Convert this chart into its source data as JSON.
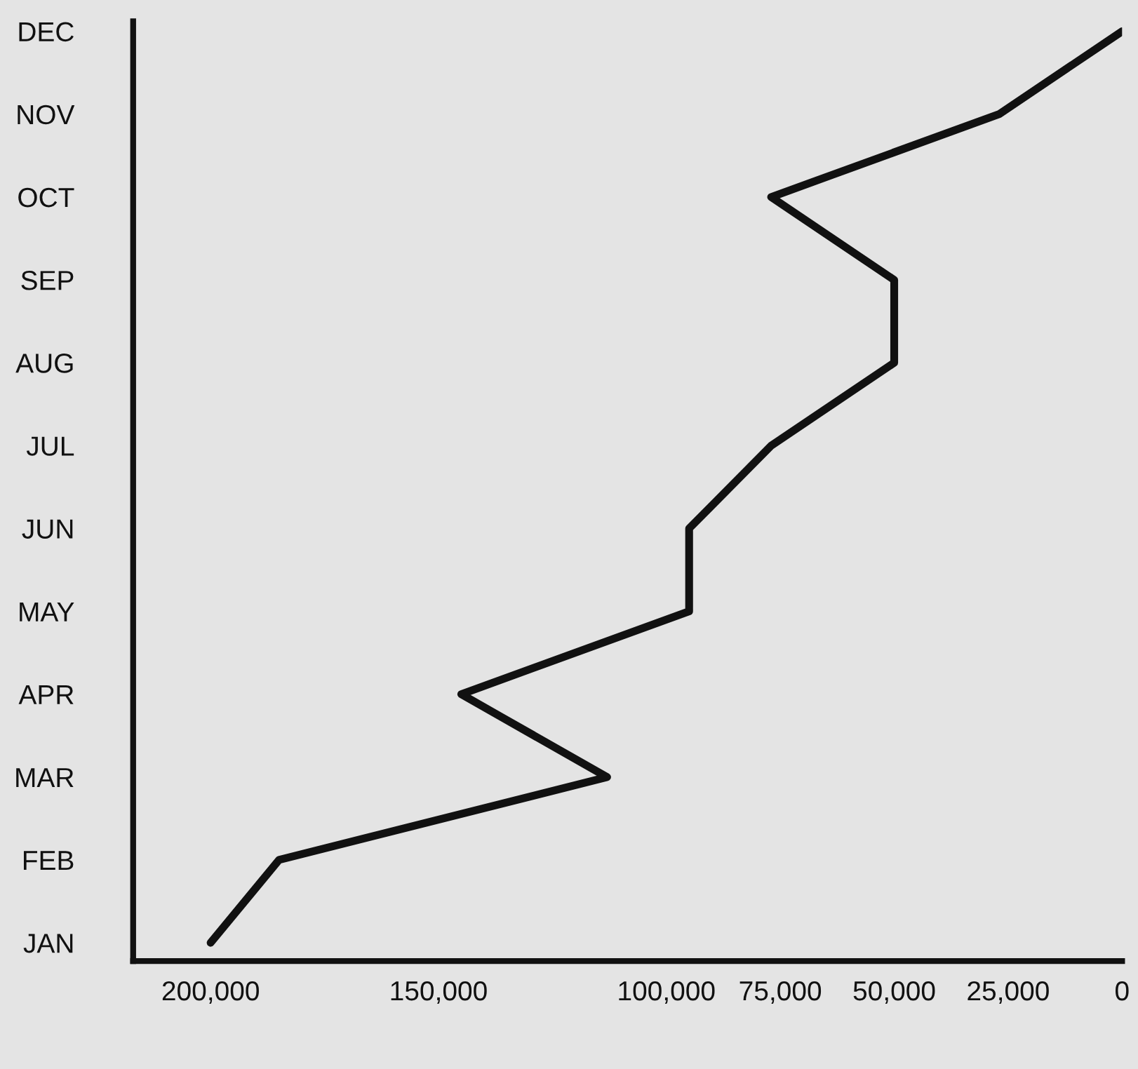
{
  "chart_data": {
    "type": "line",
    "orientation": "horizontal",
    "categories": [
      "DEC",
      "NOV",
      "OCT",
      "SEP",
      "AUG",
      "JUL",
      "JUN",
      "MAY",
      "APR",
      "MAR",
      "FEB",
      "JAN"
    ],
    "series": [
      {
        "color": "#111111",
        "values": [
          0,
          27000,
          77000,
          50000,
          50000,
          77000,
          95000,
          95000,
          145000,
          113000,
          185000,
          200000
        ]
      }
    ],
    "xlim": [
      217000,
      0
    ],
    "xticks": [
      {
        "value": 200000,
        "label": "200,000"
      },
      {
        "value": 150000,
        "label": "150,000"
      },
      {
        "value": 100000,
        "label": "100,000"
      },
      {
        "value": 75000,
        "label": "75,000"
      },
      {
        "value": 50000,
        "label": "50,000"
      },
      {
        "value": 25000,
        "label": "25,000"
      },
      0
    ],
    "grid": false,
    "legend": false,
    "marker": "none",
    "line_style": "solid"
  }
}
